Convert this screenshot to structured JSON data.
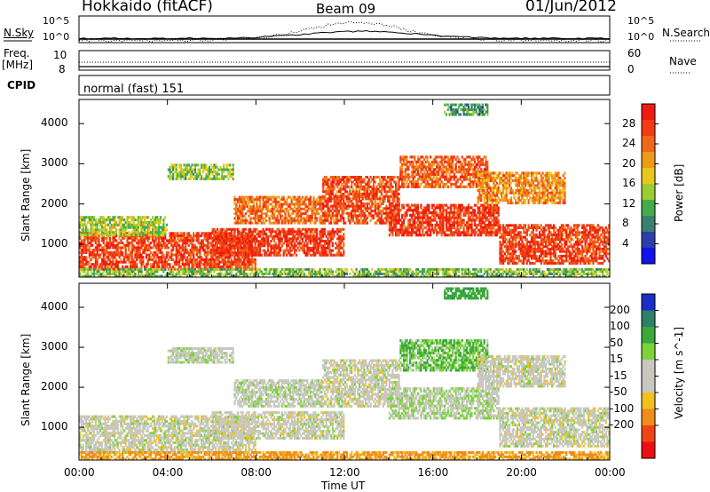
{
  "header": {
    "station": "Hokkaido (fitACF)",
    "beam": "Beam 09",
    "date": "01/Jun/2012"
  },
  "top_panels": {
    "nsky_label": "N.Sky",
    "nsky_ticks": [
      "10^5",
      "10^0"
    ],
    "nsearch_label": "N.Search",
    "freq_label_1": "Freq.",
    "freq_label_2": "[MHz]",
    "freq_ticks": [
      "10",
      "8"
    ],
    "nave_label": "Nave",
    "nave_ticks": [
      "60",
      "0"
    ],
    "cpid_label": "CPID",
    "cpid_value": "normal (fast) 151"
  },
  "chart_data": [
    {
      "type": "heatmap",
      "name": "power",
      "ylabel": "Slant Range [km]",
      "xlabel": "",
      "xlim": [
        0,
        24
      ],
      "ylim": [
        180,
        4600
      ],
      "x_ticks": [
        "00:00",
        "04:00",
        "08:00",
        "12:00",
        "16:00",
        "20:00",
        "00:00"
      ],
      "y_ticks": [
        1000,
        2000,
        3000,
        4000
      ],
      "colorbar": {
        "label": "Power [dB]",
        "ticks": [
          4,
          8,
          12,
          16,
          20,
          24,
          28
        ],
        "colors": [
          "#1212ee",
          "#2a3fa8",
          "#3b7f6f",
          "#45ab4a",
          "#9acd32",
          "#e8c81a",
          "#f09a1a",
          "#f2661a",
          "#f23a14",
          "#ee1c10"
        ]
      },
      "bands": [
        {
          "t0": 0.0,
          "t1": 8.0,
          "r0": 350,
          "r1": 1300,
          "v": 27
        },
        {
          "t0": 0.0,
          "t1": 4.0,
          "r0": 1200,
          "r1": 1700,
          "v": 15
        },
        {
          "t0": 4.0,
          "t1": 7.0,
          "r0": 2600,
          "r1": 3000,
          "v": 14
        },
        {
          "t0": 6.0,
          "t1": 12.0,
          "r0": 700,
          "r1": 1400,
          "v": 28
        },
        {
          "t0": 7.0,
          "t1": 11.0,
          "r0": 1500,
          "r1": 2200,
          "v": 24
        },
        {
          "t0": 11.0,
          "t1": 14.5,
          "r0": 1500,
          "r1": 2700,
          "v": 26
        },
        {
          "t0": 14.0,
          "t1": 19.0,
          "r0": 1200,
          "r1": 2000,
          "v": 28
        },
        {
          "t0": 14.5,
          "t1": 18.5,
          "r0": 2400,
          "r1": 3200,
          "v": 25
        },
        {
          "t0": 19.0,
          "t1": 24.0,
          "r0": 500,
          "r1": 1500,
          "v": 27
        },
        {
          "t0": 18.0,
          "t1": 22.0,
          "r0": 2000,
          "r1": 2800,
          "v": 22
        },
        {
          "t0": 16.5,
          "t1": 18.5,
          "r0": 4200,
          "r1": 4500,
          "v": 10
        },
        {
          "t0": 0.0,
          "t1": 24.0,
          "r0": 180,
          "r1": 400,
          "v": 13
        }
      ]
    },
    {
      "type": "heatmap",
      "name": "velocity",
      "ylabel": "Slant Range [km]",
      "xlabel": "Time UT",
      "xlim": [
        0,
        24
      ],
      "ylim": [
        180,
        4600
      ],
      "x_ticks": [
        "00:00",
        "04:00",
        "08:00",
        "12:00",
        "16:00",
        "20:00",
        "00:00"
      ],
      "y_ticks": [
        1000,
        2000,
        3000,
        4000
      ],
      "colorbar": {
        "label": "Velocity [m s^-1]",
        "ticks": [
          "200",
          "100",
          "50",
          "15",
          "-15",
          "-50",
          "-100",
          "-200"
        ],
        "colors": [
          "#1a2fc8",
          "#2f7f6a",
          "#3aa83a",
          "#7ed23c",
          "#c8c8c0",
          "#c8c8c0",
          "#f0c020",
          "#f08c18",
          "#f04418",
          "#ee1010"
        ]
      },
      "bands": [
        {
          "t0": 0.0,
          "t1": 8.0,
          "r0": 350,
          "r1": 1300,
          "v": 0
        },
        {
          "t0": 4.0,
          "t1": 7.0,
          "r0": 2600,
          "r1": 3000,
          "v": 5
        },
        {
          "t0": 6.0,
          "t1": 12.0,
          "r0": 700,
          "r1": 1400,
          "v": 0
        },
        {
          "t0": 7.0,
          "t1": 11.0,
          "r0": 1500,
          "r1": 2200,
          "v": 5
        },
        {
          "t0": 11.0,
          "t1": 14.5,
          "r0": 1500,
          "r1": 2700,
          "v": 0
        },
        {
          "t0": 14.0,
          "t1": 19.0,
          "r0": 1200,
          "r1": 2000,
          "v": 10
        },
        {
          "t0": 14.5,
          "t1": 18.5,
          "r0": 2400,
          "r1": 3200,
          "v": 30
        },
        {
          "t0": 19.0,
          "t1": 24.0,
          "r0": 500,
          "r1": 1500,
          "v": 0
        },
        {
          "t0": 18.0,
          "t1": 22.0,
          "r0": 2000,
          "r1": 2800,
          "v": 0
        },
        {
          "t0": 16.5,
          "t1": 18.5,
          "r0": 4200,
          "r1": 4500,
          "v": 60
        },
        {
          "t0": 0.0,
          "t1": 24.0,
          "r0": 180,
          "r1": 400,
          "v": -40
        }
      ]
    }
  ]
}
